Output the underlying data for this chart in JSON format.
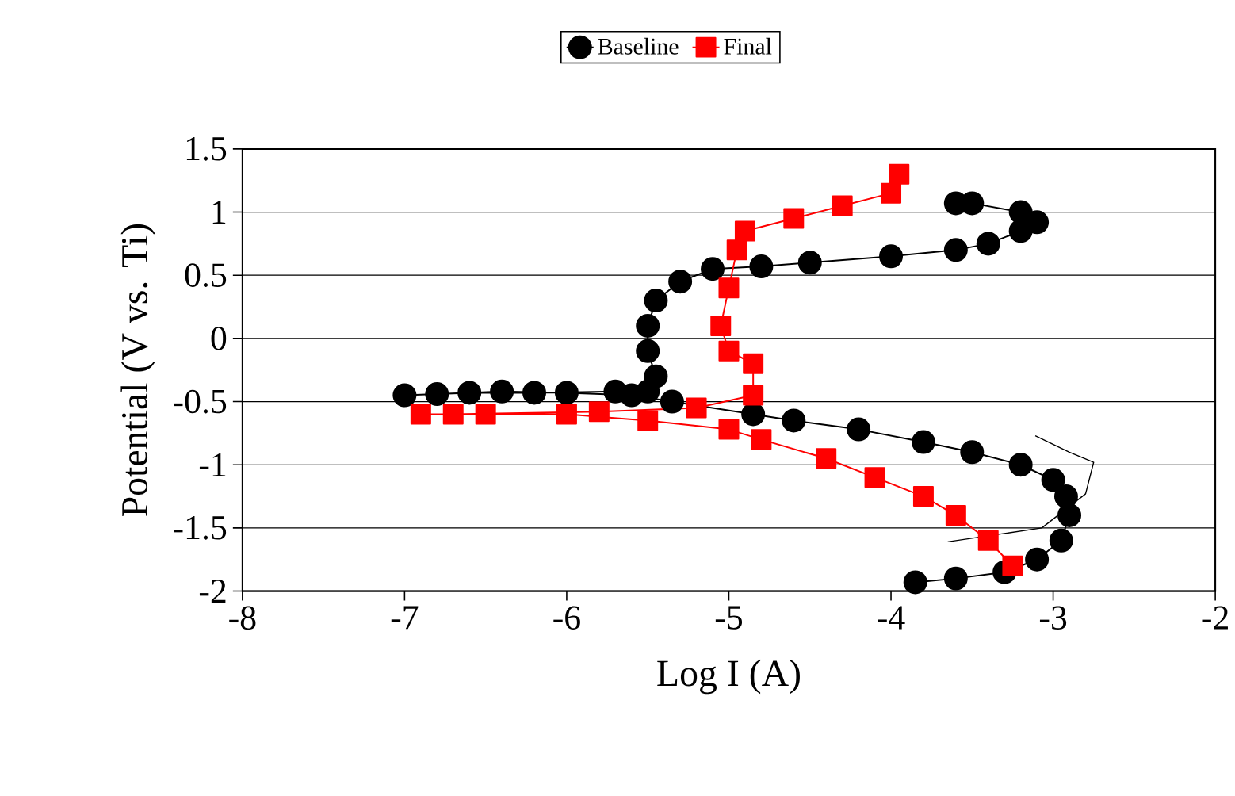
{
  "chart_data": {
    "type": "line",
    "xlabel": "Log I (A)",
    "ylabel": "Potential (V vs. Ti)",
    "xlim": [
      -8,
      -2
    ],
    "ylim": [
      -2,
      1.5
    ],
    "xticks": [
      -8,
      -7,
      -6,
      -5,
      -4,
      -3,
      -2
    ],
    "yticks": [
      -2,
      -1.5,
      -1,
      -0.5,
      0,
      0.5,
      1,
      1.5
    ],
    "grid": "y",
    "legend": "top",
    "series": [
      {
        "name": "Baseline",
        "color": "#000000",
        "marker": "circle",
        "x": [
          -3.85,
          -3.6,
          -3.3,
          -3.1,
          -2.95,
          -2.9,
          -2.92,
          -3.0,
          -3.2,
          -3.5,
          -3.8,
          -4.2,
          -4.6,
          -4.85,
          -5.35,
          -5.6,
          -6.0,
          -6.4,
          -6.8,
          -7.0,
          -6.6,
          -6.2,
          -5.7,
          -5.5,
          -5.45,
          -5.5,
          -5.5,
          -5.45,
          -5.3,
          -5.1,
          -4.8,
          -4.5,
          -4.0,
          -3.6,
          -3.4,
          -3.2,
          -3.1,
          -3.2,
          -3.5,
          -3.6
        ],
        "values": [
          -1.93,
          -1.9,
          -1.85,
          -1.75,
          -1.6,
          -1.4,
          -1.25,
          -1.12,
          -1.0,
          -0.9,
          -0.82,
          -0.72,
          -0.65,
          -0.6,
          -0.5,
          -0.45,
          -0.43,
          -0.42,
          -0.44,
          -0.45,
          -0.43,
          -0.43,
          -0.42,
          -0.42,
          -0.3,
          -0.1,
          0.1,
          0.3,
          0.45,
          0.55,
          0.57,
          0.6,
          0.65,
          0.7,
          0.75,
          0.85,
          0.92,
          1.0,
          1.07,
          1.07
        ]
      },
      {
        "name": "Final",
        "color": "#ff0000",
        "marker": "square",
        "x": [
          -3.25,
          -3.4,
          -3.6,
          -3.8,
          -4.1,
          -4.4,
          -4.8,
          -5.0,
          -5.5,
          -6.0,
          -6.5,
          -6.9,
          -6.7,
          -5.8,
          -5.2,
          -4.85,
          -4.85,
          -5.0,
          -5.05,
          -5.0,
          -4.95,
          -4.9,
          -4.6,
          -4.3,
          -4.0,
          -3.95
        ],
        "values": [
          -1.8,
          -1.6,
          -1.4,
          -1.25,
          -1.1,
          -0.95,
          -0.8,
          -0.72,
          -0.65,
          -0.6,
          -0.6,
          -0.6,
          -0.6,
          -0.58,
          -0.55,
          -0.45,
          -0.2,
          -0.1,
          0.1,
          0.4,
          0.7,
          0.85,
          0.95,
          1.05,
          1.15,
          1.3
        ]
      },
      {
        "color": "#000000",
        "marker": "none",
        "x": [
          -3.11,
          -2.9,
          -2.75,
          -2.8,
          -3.07,
          -3.65
        ],
        "values": [
          -0.77,
          -0.9,
          -0.98,
          -1.23,
          -1.5,
          -1.61
        ]
      }
    ]
  }
}
